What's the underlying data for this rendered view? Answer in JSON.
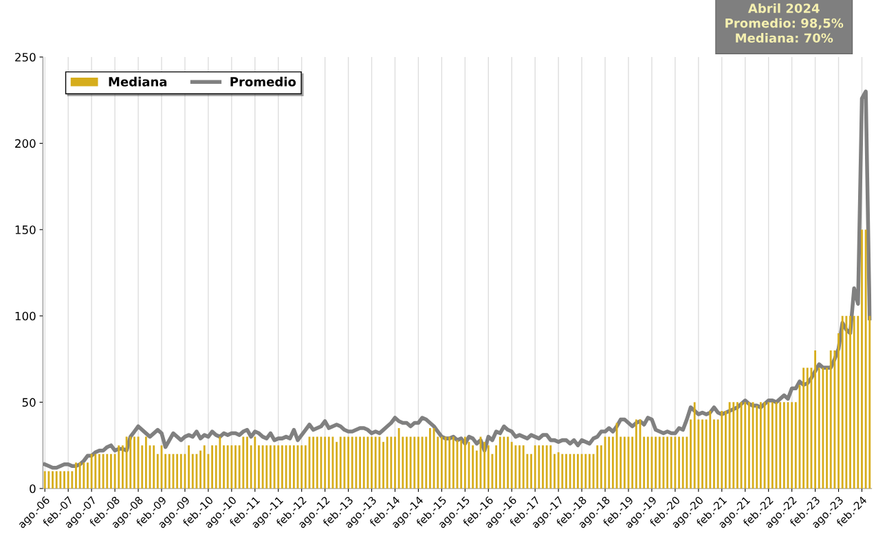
{
  "chart_data": {
    "type": "bar",
    "categories": [
      "ago.-06",
      null,
      null,
      null,
      null,
      null,
      "feb.-07",
      null,
      null,
      null,
      null,
      null,
      "ago.-07",
      null,
      null,
      null,
      null,
      null,
      "feb.-08",
      null,
      null,
      null,
      null,
      null,
      "ago.-08",
      null,
      null,
      null,
      null,
      null,
      "feb.-09",
      null,
      null,
      null,
      null,
      null,
      "ago.-09",
      null,
      null,
      null,
      null,
      null,
      "feb.-10",
      null,
      null,
      null,
      null,
      null,
      "ago.-10",
      null,
      null,
      null,
      null,
      null,
      "feb.-11",
      null,
      null,
      null,
      null,
      null,
      "ago.-11",
      null,
      null,
      null,
      null,
      null,
      "feb.-12",
      null,
      null,
      null,
      null,
      null,
      "ago.-12",
      null,
      null,
      null,
      null,
      null,
      "feb.-13",
      null,
      null,
      null,
      null,
      null,
      "ago.-13",
      null,
      null,
      null,
      null,
      null,
      "feb.-14",
      null,
      null,
      null,
      null,
      null,
      "ago.-14",
      null,
      null,
      null,
      null,
      null,
      "feb.-15",
      null,
      null,
      null,
      null,
      null,
      "ago.-15",
      null,
      null,
      null,
      null,
      null,
      "feb.-16",
      null,
      null,
      null,
      null,
      null,
      "ago.-16",
      null,
      null,
      null,
      null,
      null,
      "feb.-17",
      null,
      null,
      null,
      null,
      null,
      "ago.-17",
      null,
      null,
      null,
      null,
      null,
      "feb.-18",
      null,
      null,
      null,
      null,
      null,
      "ago.-18",
      null,
      null,
      null,
      null,
      null,
      "feb.-19",
      null,
      null,
      null,
      null,
      null,
      "ago.-19",
      null,
      null,
      null,
      null,
      null,
      "feb.-20",
      null,
      null,
      null,
      null,
      null,
      "ago.-20",
      null,
      null,
      null,
      null,
      null,
      "feb.-21",
      null,
      null,
      null,
      null,
      null,
      "ago.-21",
      null,
      null,
      null,
      null,
      null,
      "feb.-22",
      null,
      null,
      null,
      null,
      null,
      "ago.-22",
      null,
      null,
      null,
      null,
      null,
      "feb.-23",
      null,
      null,
      null,
      null,
      null,
      "ago.-23",
      null,
      null,
      null,
      null,
      null,
      "feb.-24",
      null,
      null
    ],
    "series": [
      {
        "name": "Mediana",
        "color": "#d6ad1c",
        "values": [
          10,
          10,
          10,
          10,
          10,
          10,
          10,
          10,
          15,
          15,
          15,
          15,
          20,
          20,
          20,
          20,
          20,
          20,
          20,
          25,
          25,
          30,
          30,
          30,
          30,
          25,
          30,
          25,
          25,
          20,
          25,
          20,
          20,
          20,
          20,
          20,
          20,
          25,
          20,
          20,
          22,
          25,
          20,
          25,
          25,
          30,
          25,
          25,
          25,
          25,
          25,
          30,
          30,
          25,
          30,
          25,
          25,
          25,
          25,
          25,
          25,
          25,
          25,
          25,
          25,
          25,
          25,
          25,
          30,
          30,
          30,
          30,
          30,
          30,
          30,
          27,
          30,
          30,
          30,
          30,
          30,
          30,
          30,
          30,
          30,
          30,
          30,
          27,
          30,
          30,
          30,
          35,
          30,
          30,
          30,
          30,
          30,
          30,
          30,
          35,
          35,
          30,
          30,
          30,
          30,
          30,
          28,
          28,
          30,
          27,
          25,
          22,
          30,
          27,
          25,
          20,
          25,
          30,
          30,
          30,
          27,
          25,
          25,
          25,
          20,
          20,
          25,
          25,
          25,
          25,
          25,
          20,
          21,
          20,
          20,
          20,
          20,
          20,
          20,
          20,
          20,
          20,
          25,
          25,
          30,
          30,
          30,
          38,
          30,
          30,
          30,
          30,
          40,
          40,
          30,
          30,
          30,
          30,
          30,
          30,
          30,
          30,
          30,
          30,
          30,
          30,
          40,
          50,
          40,
          40,
          40,
          45,
          40,
          40,
          45,
          45,
          50,
          50,
          50,
          50,
          50,
          50,
          50,
          48,
          50,
          50,
          50,
          50,
          50,
          50,
          50,
          50,
          50,
          50,
          60,
          70,
          70,
          70,
          80,
          70,
          70,
          70,
          80,
          80,
          90,
          100,
          100,
          100,
          100,
          100,
          150,
          150,
          100
        ]
      },
      {
        "name": "Promedio",
        "type": "line",
        "color": "#808080",
        "values": [
          14,
          13,
          12,
          12,
          13,
          14,
          14,
          13,
          13,
          14,
          16,
          19,
          19,
          21,
          22,
          22,
          24,
          25,
          22,
          23,
          23,
          22,
          30,
          33,
          36,
          34,
          32,
          30,
          32,
          34,
          32,
          24,
          28,
          32,
          30,
          28,
          30,
          31,
          30,
          33,
          29,
          31,
          30,
          33,
          31,
          30,
          32,
          31,
          32,
          32,
          31,
          33,
          34,
          30,
          33,
          32,
          30,
          29,
          32,
          28,
          29,
          29,
          30,
          29,
          34,
          28,
          31,
          34,
          37,
          34,
          35,
          36,
          39,
          35,
          36,
          37,
          36,
          34,
          33,
          33,
          34,
          35,
          35,
          34,
          32,
          33,
          32,
          34,
          36,
          38,
          41,
          39,
          38,
          38,
          36,
          38,
          38,
          41,
          40,
          38,
          36,
          33,
          30,
          29,
          29,
          30,
          28,
          29,
          26,
          30,
          29,
          26,
          28,
          22,
          30,
          28,
          33,
          32,
          36,
          34,
          33,
          30,
          31,
          30,
          29,
          31,
          30,
          29,
          31,
          31,
          28,
          28,
          27,
          28,
          28,
          26,
          28,
          25,
          28,
          27,
          26,
          29,
          30,
          33,
          33,
          35,
          33,
          36,
          40,
          40,
          38,
          36,
          38,
          39,
          37,
          41,
          40,
          34,
          33,
          32,
          33,
          32,
          32,
          35,
          34,
          40,
          47,
          45,
          43,
          44,
          43,
          44,
          47,
          44,
          43,
          44,
          45,
          46,
          47,
          49,
          51,
          49,
          48,
          48,
          47,
          49,
          51,
          51,
          50,
          52,
          54,
          52,
          58,
          58,
          62,
          60,
          61,
          64,
          68,
          72,
          70,
          70,
          70,
          75,
          81,
          96,
          92,
          90,
          116,
          107,
          226,
          230,
          98.5
        ]
      }
    ],
    "ylim": [
      0,
      250
    ],
    "yticks": [
      0,
      50,
      100,
      150,
      200,
      250
    ],
    "grid": "x",
    "legend": "top left",
    "annotations": [
      "Abril 2024\nPromedio: 98,5%\nMediana: 70%"
    ]
  }
}
